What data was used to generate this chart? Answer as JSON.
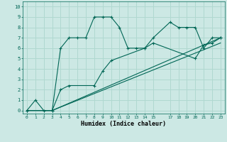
{
  "xlabel": "Humidex (Indice chaleur)",
  "bg_color": "#cce8e4",
  "line_color": "#006655",
  "grid_color": "#b0d8d0",
  "xlim": [
    -0.5,
    23.5
  ],
  "ylim": [
    -0.3,
    10.5
  ],
  "xticks": [
    0,
    1,
    2,
    3,
    4,
    5,
    6,
    7,
    8,
    9,
    10,
    11,
    12,
    13,
    14,
    15,
    17,
    18,
    19,
    20,
    21,
    22,
    23
  ],
  "yticks": [
    0,
    1,
    2,
    3,
    4,
    5,
    6,
    7,
    8,
    9,
    10
  ],
  "series1_x": [
    0,
    1,
    2,
    3,
    4,
    5,
    6,
    7,
    8,
    9,
    10,
    11,
    12,
    13,
    14,
    15,
    17,
    18,
    19,
    20,
    21,
    22,
    23
  ],
  "series1_y": [
    0,
    1,
    0,
    0,
    6,
    7,
    7,
    7,
    9,
    9,
    9,
    8,
    6,
    6,
    6,
    7,
    8.5,
    8,
    8,
    8,
    6,
    7,
    7
  ],
  "series2_x": [
    0,
    3,
    4,
    5,
    8,
    9,
    10,
    14,
    15,
    20,
    21,
    22,
    23
  ],
  "series2_y": [
    0,
    0,
    2,
    2.4,
    2.4,
    3.8,
    4.8,
    6,
    6.5,
    5.0,
    6.3,
    6.5,
    7
  ],
  "series3_x": [
    0,
    3,
    23
  ],
  "series3_y": [
    0,
    0,
    7
  ],
  "series4_x": [
    0,
    3,
    23
  ],
  "series4_y": [
    0,
    0,
    6.5
  ]
}
